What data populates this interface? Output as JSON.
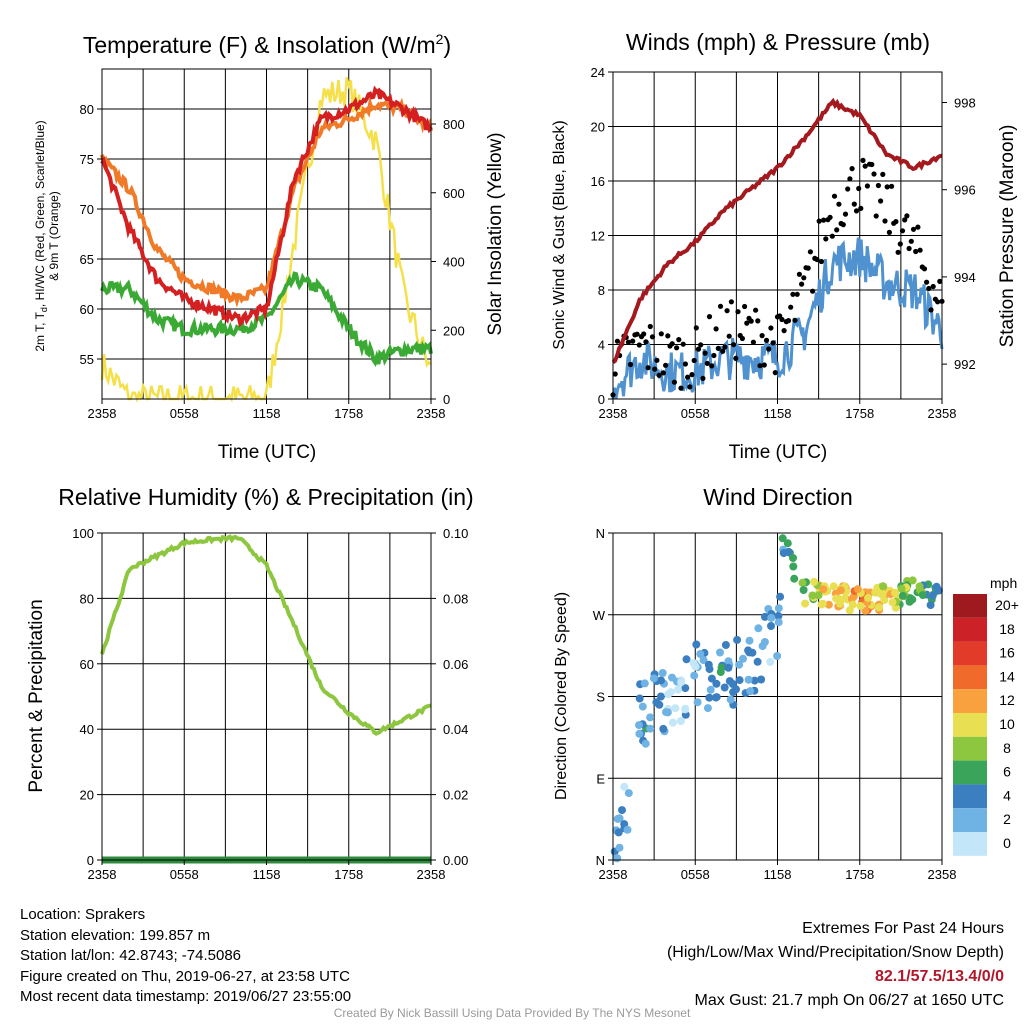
{
  "colors": {
    "temperature": "#d42020",
    "dewpoint": "#3aaa35",
    "temp9m": "#f07a28",
    "solar": "#f5e04a",
    "wind": "#4f92cf",
    "gust": "#000000",
    "pressure": "#a3191e",
    "rh": "#8dc63f",
    "precip": "#2e8b3d"
  },
  "time_ticks": [
    "2358",
    "0558",
    "1158",
    "1758",
    "2358"
  ],
  "panels": {
    "temp": {
      "title": "Temperature (F) & Insolation (W/m",
      "title_sup": "2",
      "title_end": ")",
      "ylabel_line1": "2m T, T",
      "ylabel_sub": "d",
      "ylabel_line1_end": ", HI/WC (Red, Green, Scarlet/Blue)",
      "ylabel_line2": "& 9m T (Orange)",
      "ylabel_right": "Solar Insolation (Yellow)",
      "xlabel": "Time (UTC)",
      "yticks_left": [
        "55",
        "60",
        "65",
        "70",
        "75",
        "80"
      ],
      "yticks_right": [
        "0",
        "200",
        "400",
        "600",
        "800"
      ]
    },
    "wind": {
      "title": "Winds (mph) & Pressure (mb)",
      "ylabel_left": "Sonic Wind & Gust (Blue, Black)",
      "ylabel_right": "Station Pressure (Maroon)",
      "xlabel": "Time (UTC)",
      "yticks_left": [
        "0",
        "4",
        "8",
        "12",
        "16",
        "20",
        "24"
      ],
      "yticks_right": [
        "992",
        "994",
        "996",
        "998"
      ]
    },
    "rh": {
      "title": "Relative Humidity (%) & Precipitation (in)",
      "ylabel_left": "Percent & Precipitation",
      "yticks_left": [
        "0",
        "20",
        "40",
        "60",
        "80",
        "100"
      ],
      "yticks_right": [
        "0.00",
        "0.02",
        "0.04",
        "0.06",
        "0.08",
        "0.10"
      ]
    },
    "dir": {
      "title": "Wind Direction",
      "ylabel_left": "Direction (Colored By Speed)",
      "yticks_left": [
        "N",
        "E",
        "S",
        "W",
        "N"
      ],
      "legend_title": "mph",
      "legend_labels": [
        "20+",
        "18",
        "16",
        "14",
        "12",
        "10",
        "8",
        "6",
        "4",
        "2",
        "0"
      ],
      "legend_colors": [
        "#9e1a1e",
        "#cc2127",
        "#e23b2a",
        "#f06a2b",
        "#f9a13f",
        "#e8df52",
        "#8dc63f",
        "#3aa45a",
        "#3b7fc0",
        "#6fb2e4",
        "#c3e6f8"
      ]
    }
  },
  "chart_data": [
    {
      "type": "line",
      "title": "Temperature (F) & Insolation (W/m2)",
      "xlabel": "Time (UTC)",
      "x": [
        "2358",
        "0158",
        "0358",
        "0558",
        "0758",
        "0958",
        "1158",
        "1358",
        "1558",
        "1758",
        "1958",
        "2158",
        "2358"
      ],
      "ylim": [
        51,
        84
      ],
      "y2lim": [
        0,
        960
      ],
      "series": [
        {
          "values": [
            75,
            68,
            63,
            61,
            60,
            59,
            60,
            73,
            79,
            80,
            81.5,
            80,
            78
          ]
        },
        {
          "values": [
            62,
            62,
            59,
            58,
            58,
            58,
            59,
            63,
            62,
            58,
            55,
            56,
            56
          ]
        },
        {
          "values": [
            75,
            72,
            66,
            63,
            62,
            61,
            62,
            72,
            78,
            79,
            80.5,
            80,
            78
          ]
        },
        {
          "values": [
            100,
            0,
            0,
            0,
            0,
            0,
            0,
            450,
            880,
            900,
            750,
            300,
            80
          ]
        }
      ]
    },
    {
      "type": "line",
      "title": "Winds (mph) & Pressure (mb)",
      "xlabel": "Time (UTC)",
      "x": [
        "2358",
        "0158",
        "0358",
        "0558",
        "0758",
        "0958",
        "1158",
        "1358",
        "1558",
        "1758",
        "1958",
        "2158",
        "2358"
      ],
      "ylim": [
        0,
        24
      ],
      "y2lim": [
        991.2,
        998.7
      ],
      "series": [
        {
          "values": [
            1,
            3,
            2,
            2,
            3,
            3,
            3,
            5,
            10,
            10.5,
            8.5,
            8,
            5
          ]
        },
        {
          "values": [
            2,
            4,
            3,
            3,
            5,
            5,
            4,
            8,
            14,
            16,
            14,
            11,
            7
          ]
        },
        {
          "values": [
            992,
            993.5,
            994.3,
            994.8,
            995.5,
            996,
            996.5,
            997.2,
            998,
            997.7,
            996.8,
            996.5,
            996.8
          ]
        }
      ]
    },
    {
      "type": "line",
      "title": "Relative Humidity (%) & Precipitation (in)",
      "x": [
        "2358",
        "0158",
        "0358",
        "0558",
        "0758",
        "0958",
        "1158",
        "1358",
        "1558",
        "1758",
        "1958",
        "2158",
        "2358"
      ],
      "ylim": [
        0,
        100
      ],
      "y2lim": [
        0,
        0.1
      ],
      "series": [
        {
          "values": [
            63,
            89,
            93,
            97,
            98,
            98.5,
            90,
            72,
            53,
            45,
            39,
            43,
            47
          ]
        },
        {
          "values": [
            0,
            0,
            0,
            0,
            0,
            0,
            0,
            0,
            0,
            0,
            0,
            0,
            0
          ]
        }
      ]
    },
    {
      "type": "scatter",
      "title": "Wind Direction",
      "x": [
        "2358",
        "0158",
        "0358",
        "0558",
        "0758",
        "0958",
        "1158",
        "1358",
        "1558",
        "1758",
        "1958",
        "2158",
        "2358"
      ],
      "yticks": [
        "N",
        "E",
        "S",
        "W",
        "N"
      ],
      "ylim": [
        0,
        360
      ],
      "points": [
        {
          "x": 0.2,
          "dir": 20,
          "speed": 3
        },
        {
          "x": 0.6,
          "dir": 75,
          "speed": 2
        },
        {
          "x": 1.0,
          "dir": 160,
          "speed": 4
        },
        {
          "x": 1.5,
          "dir": 175,
          "speed": 3
        },
        {
          "x": 2.2,
          "dir": 165,
          "speed": 1
        },
        {
          "x": 3.0,
          "dir": 200,
          "speed": 2
        },
        {
          "x": 4.0,
          "dir": 205,
          "speed": 4
        },
        {
          "x": 5.0,
          "dir": 215,
          "speed": 3
        },
        {
          "x": 6.0,
          "dir": 255,
          "speed": 2
        },
        {
          "x": 6.2,
          "dir": 348,
          "speed": 4
        },
        {
          "x": 7.0,
          "dir": 295,
          "speed": 8
        },
        {
          "x": 8.0,
          "dir": 290,
          "speed": 11
        },
        {
          "x": 9.0,
          "dir": 285,
          "speed": 12
        },
        {
          "x": 10.0,
          "dir": 290,
          "speed": 10
        },
        {
          "x": 11.0,
          "dir": 295,
          "speed": 7
        },
        {
          "x": 12.0,
          "dir": 290,
          "speed": 5
        }
      ]
    }
  ],
  "info": {
    "location": "Location: Sprakers",
    "elevation": "Station elevation: 199.857 m",
    "latlon": "Station lat/lon: 42.8743; -74.5086",
    "created": "Figure created on Thu, 2019-06-27, at 23:58 UTC",
    "recent": "Most recent data timestamp: 2019/06/27 23:55:00"
  },
  "extremes": {
    "title": "Extremes For Past 24 Hours",
    "subtitle": "(High/Low/Max Wind/Precipitation/Snow Depth)",
    "values": "82.1/57.5/13.4/0/0",
    "gust": "Max Gust: 21.7 mph On 06/27 at 1650 UTC"
  },
  "credit": "Created By Nick Bassill Using Data Provided By The NYS Mesonet"
}
